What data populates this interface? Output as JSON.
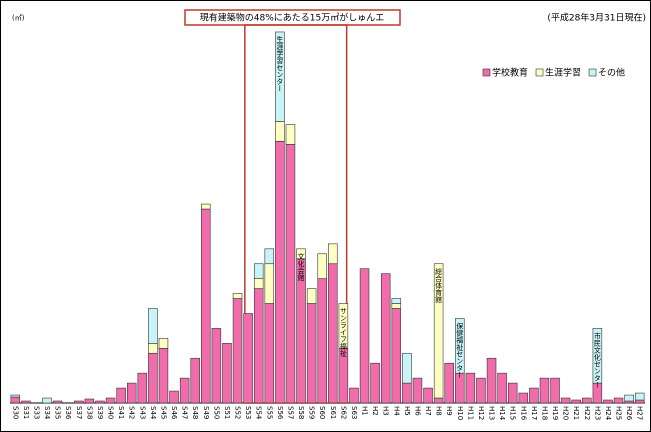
{
  "chart_data": {
    "type": "stacked_bar",
    "title": "現有建築物の48%にあたる15万㎡がしゅんエ",
    "subtitle": "(平成28年3月31日現在)",
    "y_label": "(㎡)",
    "categories": [
      "S30",
      "S31",
      "S33",
      "S34",
      "S35",
      "S36",
      "S37",
      "S38",
      "S39",
      "S40",
      "S41",
      "S42",
      "S43",
      "S44",
      "S45",
      "S46",
      "S47",
      "S48",
      "S49",
      "S50",
      "S51",
      "S52",
      "S53",
      "S54",
      "S55",
      "S56",
      "S57",
      "S58",
      "S59",
      "S60",
      "S61",
      "S62",
      "S63",
      "H1",
      "H2",
      "H3",
      "H4",
      "H5",
      "H6",
      "H7",
      "H8",
      "H9",
      "H10",
      "H11",
      "H12",
      "H13",
      "H14",
      "H15",
      "H16",
      "H17",
      "H18",
      "H19",
      "H20",
      "H21",
      "H22",
      "H23",
      "H24",
      "H25",
      "H26",
      "H27"
    ],
    "series": [
      {
        "name": "学校教育",
        "color": "#f06cab",
        "values": [
          6,
          2,
          0,
          0,
          2,
          0,
          2,
          4,
          2,
          5,
          15,
          20,
          30,
          50,
          55,
          12,
          25,
          45,
          195,
          75,
          60,
          105,
          90,
          115,
          100,
          263,
          260,
          145,
          100,
          125,
          140,
          55,
          15,
          135,
          40,
          130,
          95,
          20,
          25,
          15,
          5,
          40,
          30,
          30,
          25,
          45,
          30,
          20,
          10,
          15,
          25,
          25,
          5,
          3,
          5,
          20,
          3,
          5,
          2,
          3
        ]
      },
      {
        "name": "生涯学習",
        "color": "#ffffc4",
        "values": [
          0,
          0,
          0,
          0,
          0,
          0,
          0,
          0,
          0,
          0,
          0,
          0,
          0,
          10,
          10,
          0,
          0,
          0,
          5,
          0,
          0,
          5,
          0,
          10,
          40,
          20,
          20,
          10,
          15,
          25,
          20,
          45,
          0,
          0,
          0,
          0,
          5,
          0,
          0,
          0,
          135,
          0,
          0,
          0,
          0,
          0,
          0,
          0,
          0,
          0,
          0,
          0,
          0,
          0,
          0,
          0,
          0,
          0,
          0,
          0
        ]
      },
      {
        "name": "その他",
        "color": "#c8f4f8",
        "values": [
          2,
          0,
          0,
          5,
          0,
          0,
          0,
          0,
          0,
          0,
          0,
          0,
          0,
          35,
          0,
          0,
          0,
          0,
          0,
          0,
          0,
          0,
          0,
          15,
          15,
          90,
          0,
          0,
          0,
          0,
          0,
          0,
          0,
          0,
          0,
          0,
          5,
          30,
          0,
          0,
          0,
          0,
          55,
          0,
          0,
          0,
          0,
          0,
          0,
          0,
          0,
          0,
          0,
          0,
          0,
          55,
          0,
          0,
          6,
          7
        ]
      }
    ],
    "ylim": [
      0,
      380
    ],
    "legend": "top-right",
    "annotations": [
      {
        "text": "生涯学習センター",
        "category": 25
      },
      {
        "text": "文化会館",
        "category": 27
      },
      {
        "text": "サンライフ福祉",
        "category": 31
      },
      {
        "text": "総合体育館",
        "category": 40
      },
      {
        "text": "保健福祉センター",
        "category": 42
      },
      {
        "text": "市民文化センター",
        "category": 55
      }
    ]
  }
}
